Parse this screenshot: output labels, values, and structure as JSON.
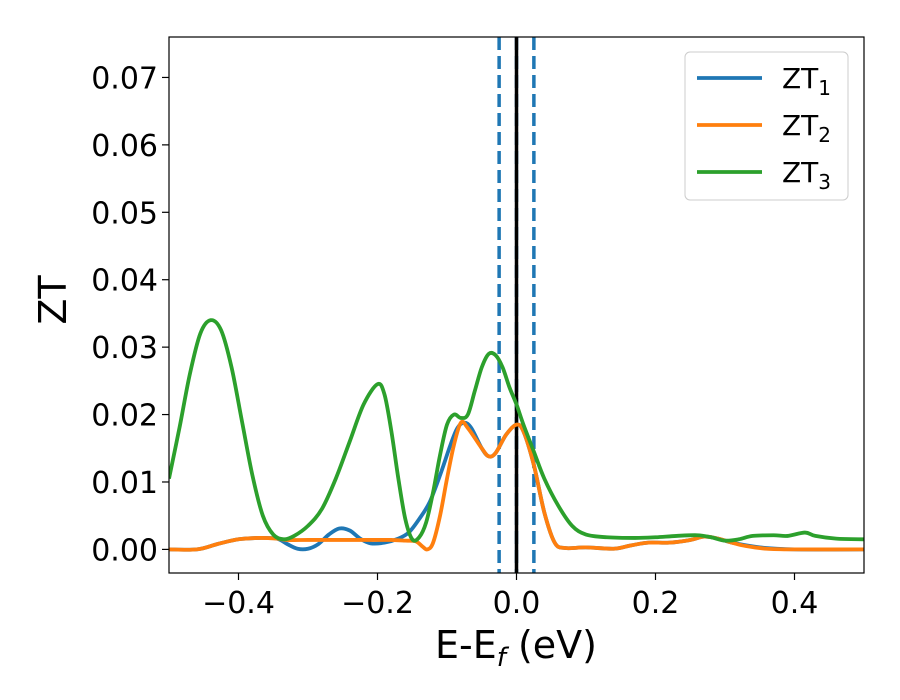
{
  "chart_data": {
    "type": "line",
    "xlabel": "E-E",
    "xlabel_sub": "f",
    "xlabel_unit": " (eV)",
    "ylabel": "ZT",
    "xlim": [
      -0.5,
      0.5
    ],
    "ylim": [
      -0.0035,
      0.076
    ],
    "xticks": [
      -0.4,
      -0.2,
      0.0,
      0.2,
      0.4
    ],
    "xtick_labels": [
      "−0.4",
      "−0.2",
      "0.0",
      "0.2",
      "0.4"
    ],
    "yticks": [
      0.0,
      0.01,
      0.02,
      0.03,
      0.04,
      0.05,
      0.06,
      0.07
    ],
    "ytick_labels": [
      "0.00",
      "0.01",
      "0.02",
      "0.03",
      "0.04",
      "0.05",
      "0.06",
      "0.07"
    ],
    "legend_position": "top-right",
    "grid": false,
    "vlines": [
      {
        "x": -0.025,
        "style": "dashed",
        "color": "#1f77b4"
      },
      {
        "x": 0.0,
        "style": "dashed",
        "color": "#1f77b4"
      },
      {
        "x": 0.025,
        "style": "dashed",
        "color": "#1f77b4"
      },
      {
        "x": 0.0,
        "style": "solid",
        "color": "#000000"
      }
    ],
    "series": [
      {
        "name": "ZT",
        "name_sub": "1",
        "color": "#1f77b4",
        "points": [
          [
            -0.5,
            0.0
          ],
          [
            -0.46,
            0.0
          ],
          [
            -0.43,
            0.0008
          ],
          [
            -0.4,
            0.0015
          ],
          [
            -0.37,
            0.0017
          ],
          [
            -0.345,
            0.0016
          ],
          [
            -0.33,
            0.0008
          ],
          [
            -0.315,
            0.0001
          ],
          [
            -0.3,
            0.0001
          ],
          [
            -0.285,
            0.0008
          ],
          [
            -0.27,
            0.0022
          ],
          [
            -0.255,
            0.0031
          ],
          [
            -0.24,
            0.0028
          ],
          [
            -0.225,
            0.0016
          ],
          [
            -0.21,
            0.0009
          ],
          [
            -0.19,
            0.001
          ],
          [
            -0.17,
            0.0016
          ],
          [
            -0.155,
            0.0025
          ],
          [
            -0.14,
            0.0045
          ],
          [
            -0.125,
            0.007
          ],
          [
            -0.11,
            0.011
          ],
          [
            -0.095,
            0.0155
          ],
          [
            -0.085,
            0.018
          ],
          [
            -0.075,
            0.0188
          ],
          [
            -0.065,
            0.018
          ],
          [
            -0.05,
            0.015
          ],
          [
            -0.04,
            0.0138
          ],
          [
            -0.03,
            0.0143
          ],
          [
            -0.015,
            0.017
          ],
          [
            0.0,
            0.0185
          ],
          [
            0.01,
            0.0175
          ],
          [
            0.025,
            0.0125
          ],
          [
            0.04,
            0.0055
          ],
          [
            0.055,
            0.001
          ],
          [
            0.07,
            0.0002
          ],
          [
            0.1,
            0.0003
          ],
          [
            0.14,
            0.0001
          ],
          [
            0.165,
            0.0006
          ],
          [
            0.19,
            0.001
          ],
          [
            0.22,
            0.001
          ],
          [
            0.25,
            0.0014
          ],
          [
            0.27,
            0.0019
          ],
          [
            0.29,
            0.0016
          ],
          [
            0.31,
            0.001
          ],
          [
            0.35,
            0.0003
          ],
          [
            0.4,
            0.0
          ],
          [
            0.5,
            0.0
          ]
        ]
      },
      {
        "name": "ZT",
        "name_sub": "2",
        "color": "#ff7f0e",
        "points": [
          [
            -0.5,
            0.0
          ],
          [
            -0.46,
            0.0
          ],
          [
            -0.43,
            0.0008
          ],
          [
            -0.4,
            0.0015
          ],
          [
            -0.37,
            0.0017
          ],
          [
            -0.345,
            0.0016
          ],
          [
            -0.33,
            0.0014
          ],
          [
            -0.3,
            0.0014
          ],
          [
            -0.27,
            0.0014
          ],
          [
            -0.24,
            0.0014
          ],
          [
            -0.21,
            0.0014
          ],
          [
            -0.18,
            0.0014
          ],
          [
            -0.16,
            0.0013
          ],
          [
            -0.145,
            0.0012
          ],
          [
            -0.135,
            0.0004
          ],
          [
            -0.128,
            0.0
          ],
          [
            -0.12,
            0.001
          ],
          [
            -0.11,
            0.005
          ],
          [
            -0.1,
            0.0105
          ],
          [
            -0.09,
            0.0155
          ],
          [
            -0.08,
            0.0188
          ],
          [
            -0.07,
            0.018
          ],
          [
            -0.05,
            0.015
          ],
          [
            -0.04,
            0.0138
          ],
          [
            -0.03,
            0.0143
          ],
          [
            -0.015,
            0.017
          ],
          [
            0.0,
            0.0185
          ],
          [
            0.01,
            0.0175
          ],
          [
            0.025,
            0.0125
          ],
          [
            0.04,
            0.0055
          ],
          [
            0.055,
            0.001
          ],
          [
            0.07,
            0.0002
          ],
          [
            0.1,
            0.0003
          ],
          [
            0.14,
            0.0001
          ],
          [
            0.165,
            0.0006
          ],
          [
            0.19,
            0.001
          ],
          [
            0.22,
            0.001
          ],
          [
            0.25,
            0.0014
          ],
          [
            0.27,
            0.0019
          ],
          [
            0.29,
            0.0016
          ],
          [
            0.31,
            0.001
          ],
          [
            0.33,
            0.0005
          ],
          [
            0.36,
            0.0001
          ],
          [
            0.4,
            0.0
          ],
          [
            0.5,
            0.0
          ]
        ]
      },
      {
        "name": "ZT",
        "name_sub": "3",
        "color": "#2ca02c",
        "points": [
          [
            -0.5,
            0.0105
          ],
          [
            -0.485,
            0.018
          ],
          [
            -0.47,
            0.026
          ],
          [
            -0.455,
            0.032
          ],
          [
            -0.44,
            0.034
          ],
          [
            -0.425,
            0.0325
          ],
          [
            -0.41,
            0.027
          ],
          [
            -0.395,
            0.019
          ],
          [
            -0.38,
            0.011
          ],
          [
            -0.365,
            0.005
          ],
          [
            -0.35,
            0.0022
          ],
          [
            -0.335,
            0.0015
          ],
          [
            -0.32,
            0.002
          ],
          [
            -0.3,
            0.0035
          ],
          [
            -0.28,
            0.006
          ],
          [
            -0.26,
            0.0105
          ],
          [
            -0.24,
            0.016
          ],
          [
            -0.22,
            0.0215
          ],
          [
            -0.2,
            0.0245
          ],
          [
            -0.19,
            0.023
          ],
          [
            -0.18,
            0.0175
          ],
          [
            -0.17,
            0.0105
          ],
          [
            -0.16,
            0.0045
          ],
          [
            -0.15,
            0.0015
          ],
          [
            -0.14,
            0.0018
          ],
          [
            -0.13,
            0.004
          ],
          [
            -0.12,
            0.0085
          ],
          [
            -0.11,
            0.014
          ],
          [
            -0.1,
            0.0185
          ],
          [
            -0.09,
            0.02
          ],
          [
            -0.08,
            0.0195
          ],
          [
            -0.07,
            0.02
          ],
          [
            -0.06,
            0.0235
          ],
          [
            -0.05,
            0.027
          ],
          [
            -0.04,
            0.029
          ],
          [
            -0.03,
            0.0288
          ],
          [
            -0.02,
            0.027
          ],
          [
            -0.01,
            0.024
          ],
          [
            0.0,
            0.0215
          ],
          [
            0.01,
            0.0185
          ],
          [
            0.025,
            0.0145
          ],
          [
            0.04,
            0.0105
          ],
          [
            0.06,
            0.0065
          ],
          [
            0.08,
            0.0035
          ],
          [
            0.1,
            0.0022
          ],
          [
            0.13,
            0.0018
          ],
          [
            0.17,
            0.0017
          ],
          [
            0.2,
            0.0018
          ],
          [
            0.23,
            0.002
          ],
          [
            0.26,
            0.0021
          ],
          [
            0.28,
            0.0018
          ],
          [
            0.3,
            0.0013
          ],
          [
            0.32,
            0.0015
          ],
          [
            0.34,
            0.002
          ],
          [
            0.37,
            0.0021
          ],
          [
            0.39,
            0.002
          ],
          [
            0.415,
            0.0025
          ],
          [
            0.43,
            0.002
          ],
          [
            0.46,
            0.0016
          ],
          [
            0.5,
            0.0015
          ]
        ]
      }
    ]
  }
}
